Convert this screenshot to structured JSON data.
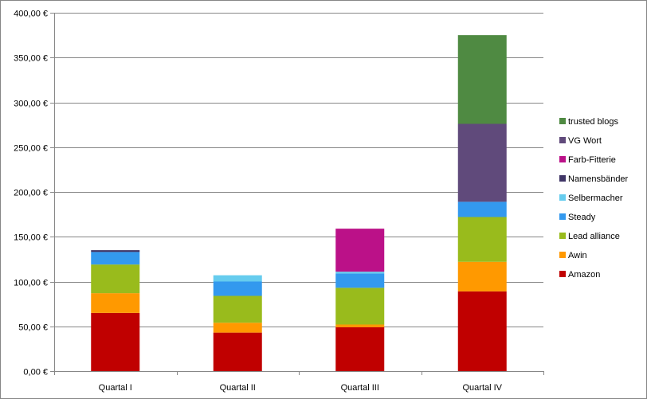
{
  "chart_data": {
    "type": "bar",
    "stacked": true,
    "title": "",
    "xlabel": "",
    "ylabel": "",
    "ylim": [
      0,
      400
    ],
    "y_ticks": [
      0,
      50,
      100,
      150,
      200,
      250,
      300,
      350,
      400
    ],
    "y_tick_labels": [
      "0,00 €",
      "50,00 €",
      "100,00 €",
      "150,00 €",
      "200,00 €",
      "250,00 €",
      "300,00 €",
      "350,00 €",
      "400,00 €"
    ],
    "grid": true,
    "legend_position": "right",
    "categories": [
      "Quartal I",
      "Quartal II",
      "Quartal III",
      "Quartal IV"
    ],
    "series": [
      {
        "name": "Amazon",
        "color": "#C00000",
        "values": [
          65,
          43,
          49,
          89
        ]
      },
      {
        "name": "Awin",
        "color": "#FF9900",
        "values": [
          22,
          11,
          3,
          33
        ]
      },
      {
        "name": "Lead alliance",
        "color": "#99BB1C",
        "values": [
          32,
          30,
          41,
          50
        ]
      },
      {
        "name": "Steady",
        "color": "#3399EE",
        "values": [
          14,
          16,
          16,
          17
        ]
      },
      {
        "name": "Selbermacher",
        "color": "#66CCEE",
        "values": [
          0,
          7,
          2,
          0
        ]
      },
      {
        "name": "Namensbänder",
        "color": "#3F3566",
        "values": [
          2,
          0,
          0,
          0
        ]
      },
      {
        "name": "Farb-Fitterie",
        "color": "#BB1188",
        "values": [
          0,
          0,
          48,
          0
        ]
      },
      {
        "name": "VG Wort",
        "color": "#604A7B",
        "values": [
          0,
          0,
          0,
          87
        ]
      },
      {
        "name": "trusted blogs",
        "color": "#4F8A42",
        "values": [
          0,
          0,
          0,
          99
        ]
      }
    ]
  }
}
